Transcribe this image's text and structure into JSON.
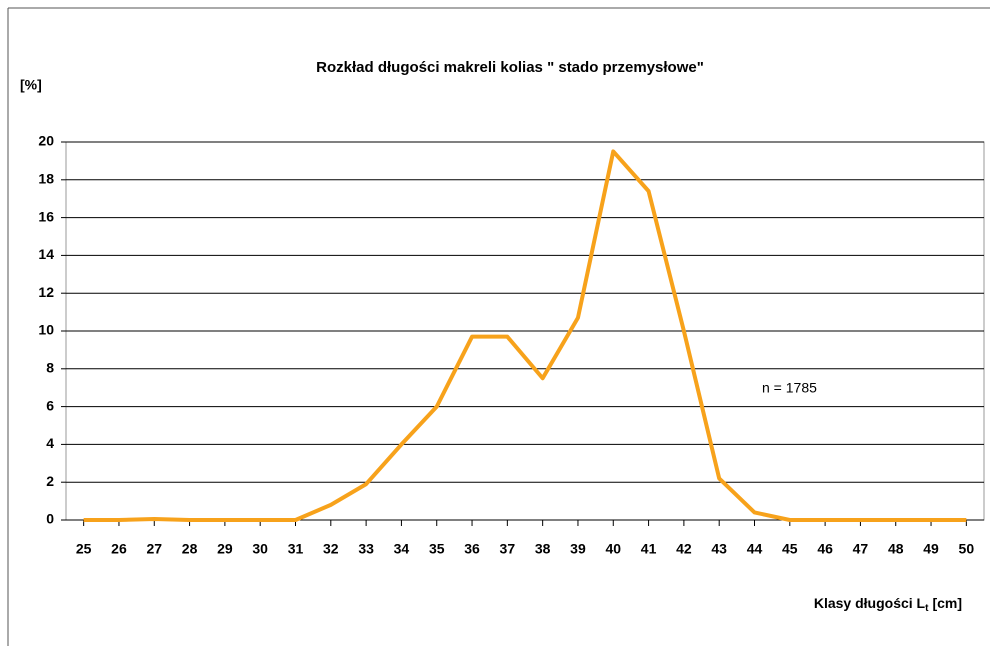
{
  "chart_data": {
    "type": "line",
    "title": "Rozkład długości makreli kolias \" stado przemysłowe\"",
    "y_label": "[%]",
    "x_label": {
      "main": "Klasy długości L",
      "sub": "t",
      "unit": "[cm]"
    },
    "annotation": "n = 1785",
    "x": [
      25,
      26,
      27,
      28,
      29,
      30,
      31,
      32,
      33,
      34,
      35,
      36,
      37,
      38,
      39,
      40,
      41,
      42,
      43,
      44,
      45,
      46,
      47,
      48,
      49,
      50
    ],
    "series": [
      {
        "name": "stado przemysłowe",
        "color": "#f7a21b",
        "values": [
          0,
          0,
          0.05,
          0,
          0,
          0,
          0,
          0.8,
          1.9,
          4,
          6,
          9.7,
          9.7,
          7.5,
          10.7,
          19.5,
          17.4,
          10,
          2.2,
          0.4,
          0,
          0,
          0,
          0,
          0,
          0
        ]
      }
    ],
    "xlim": [
      24.5,
      50.5
    ],
    "xticks": [
      25,
      26,
      27,
      28,
      29,
      30,
      31,
      32,
      33,
      34,
      35,
      36,
      37,
      38,
      39,
      40,
      41,
      42,
      43,
      44,
      45,
      46,
      47,
      48,
      49,
      50
    ],
    "ylim": [
      0,
      20
    ],
    "yticks": [
      0,
      2,
      4,
      6,
      8,
      10,
      12,
      14,
      16,
      18,
      20
    ],
    "grid": true
  }
}
